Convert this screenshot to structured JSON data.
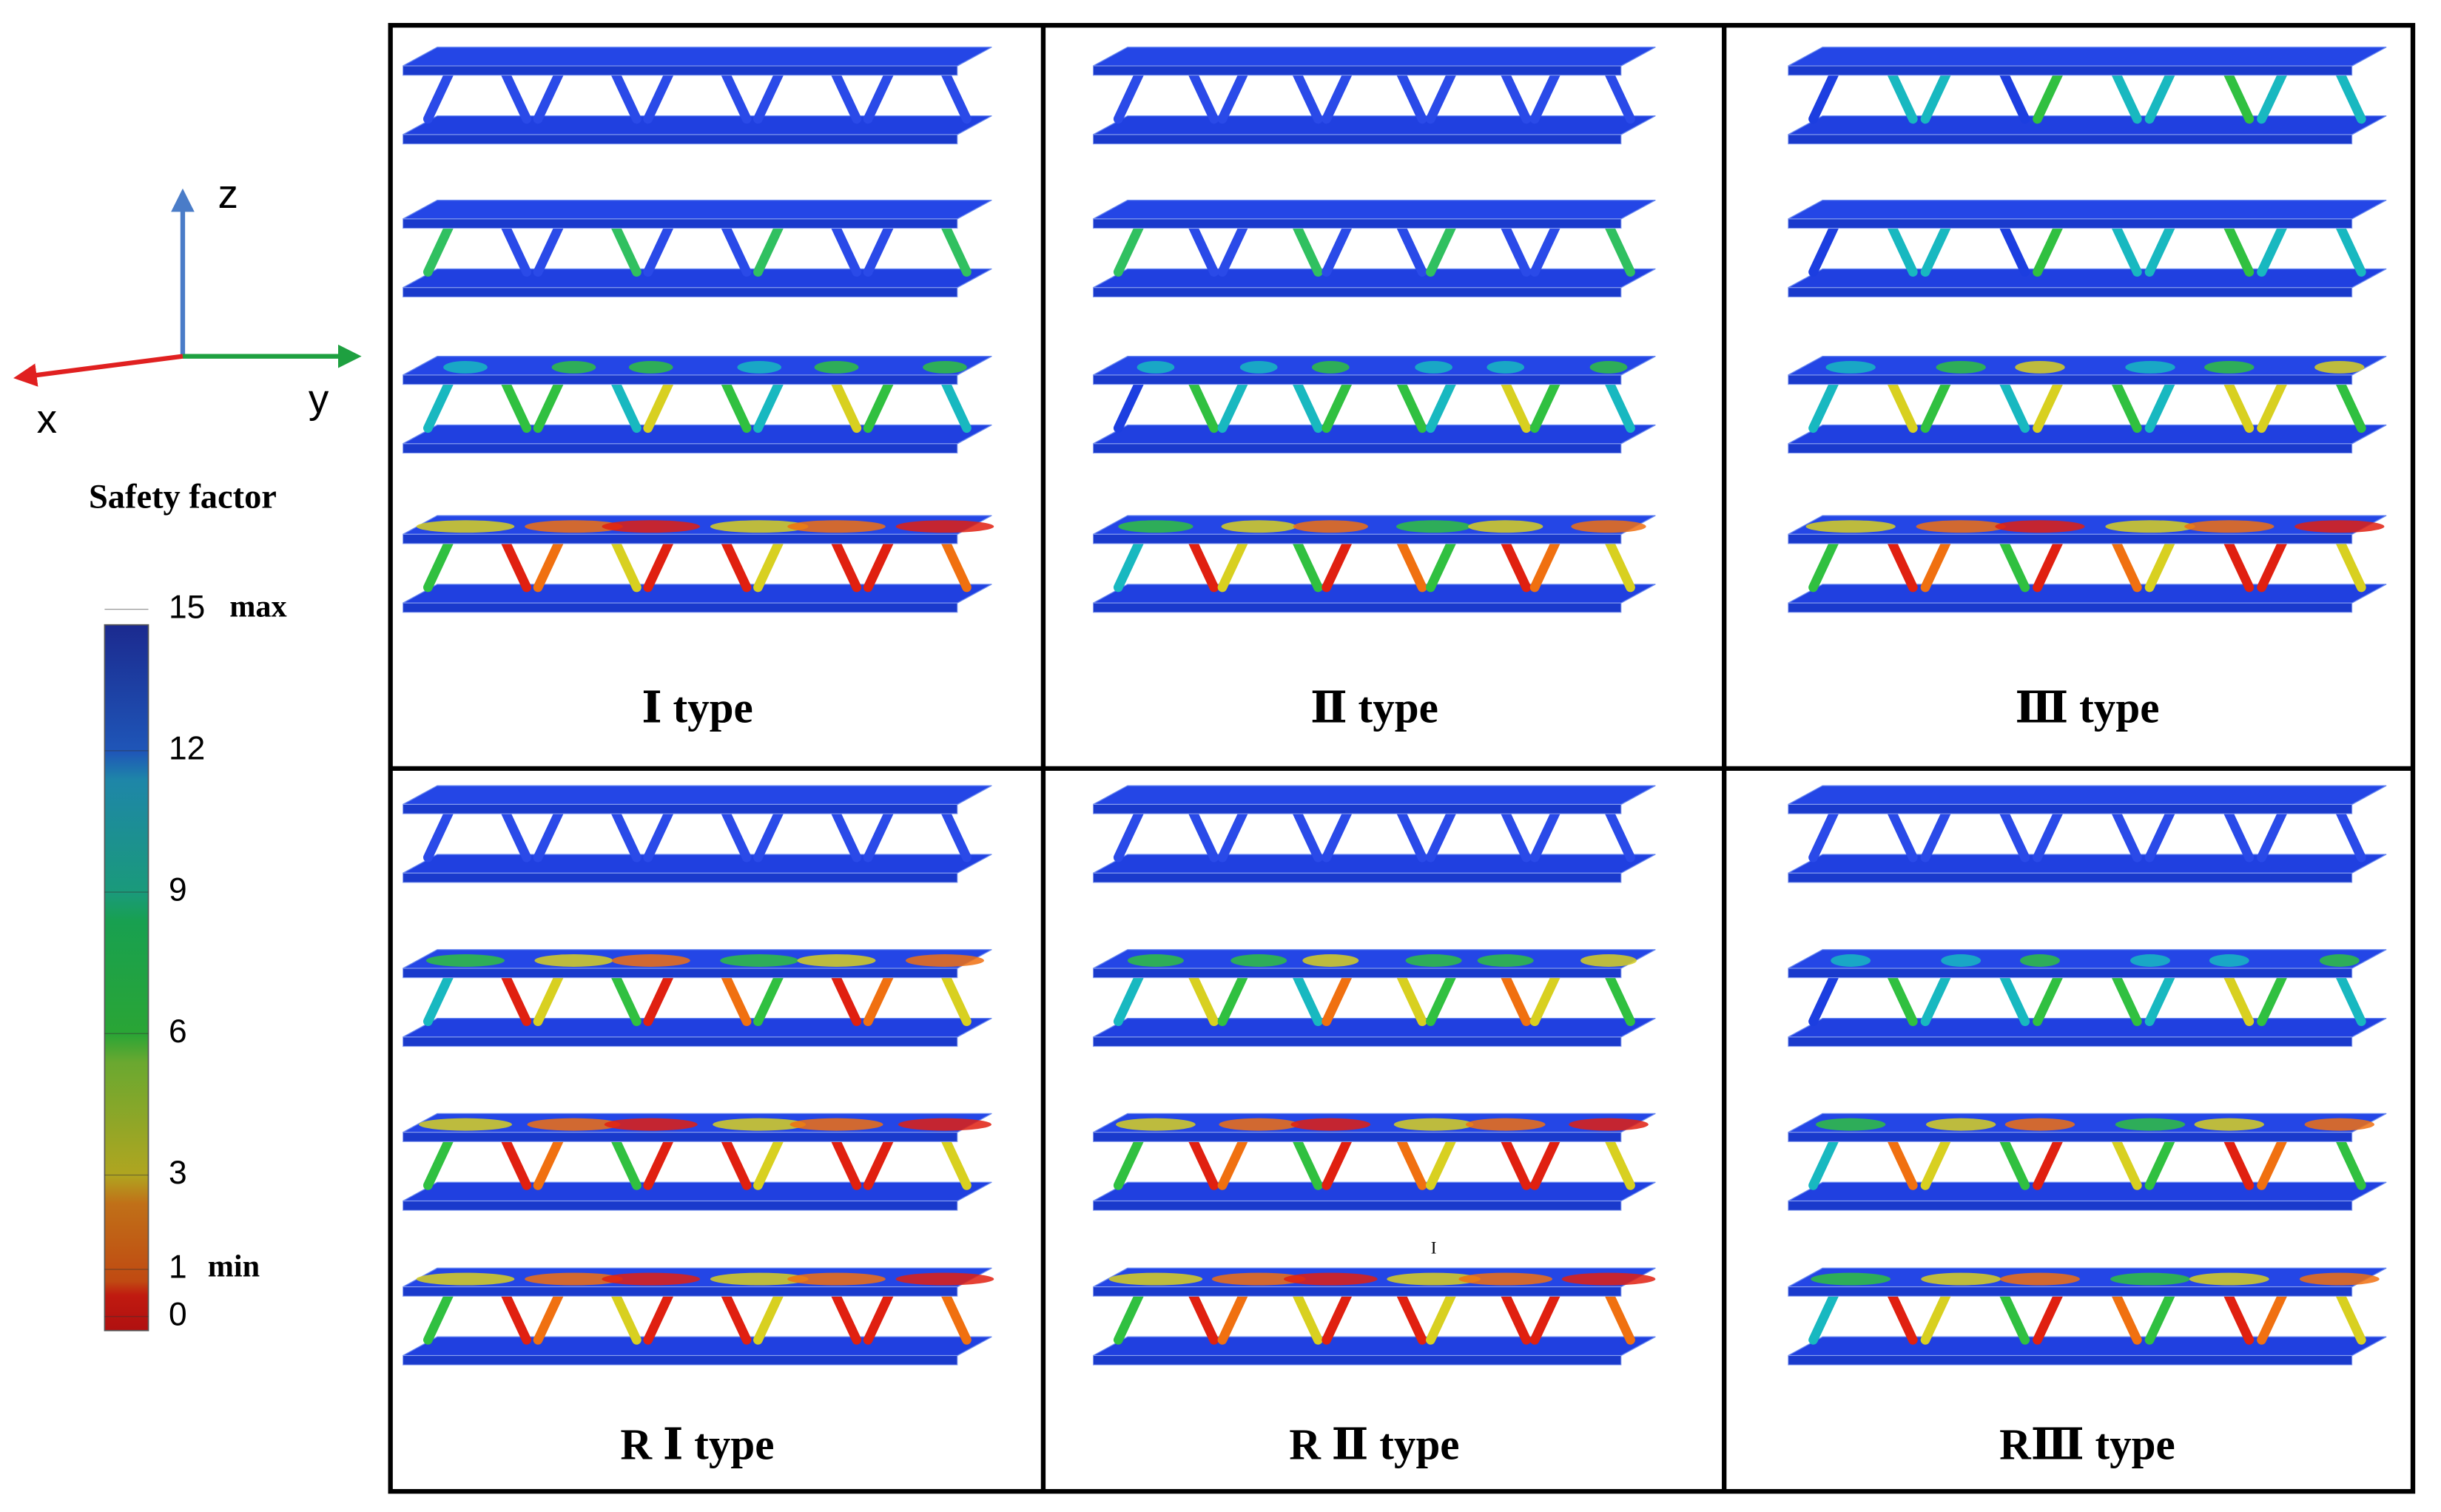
{
  "axes": {
    "z": "z",
    "x": "x",
    "y": "y"
  },
  "legend": {
    "title": "Safety factor",
    "ticks": [
      15,
      12,
      9,
      6,
      3,
      1,
      0
    ],
    "max_label": "max",
    "min_label": "min"
  },
  "panels": [
    {
      "label": "Ⅰ type"
    },
    {
      "label": "Ⅱ type"
    },
    {
      "label": "Ⅲ type"
    },
    {
      "label": "R Ⅰ type"
    },
    {
      "label": "R Ⅱ type",
      "note": "I"
    },
    {
      "label": "RⅢ type"
    }
  ]
}
